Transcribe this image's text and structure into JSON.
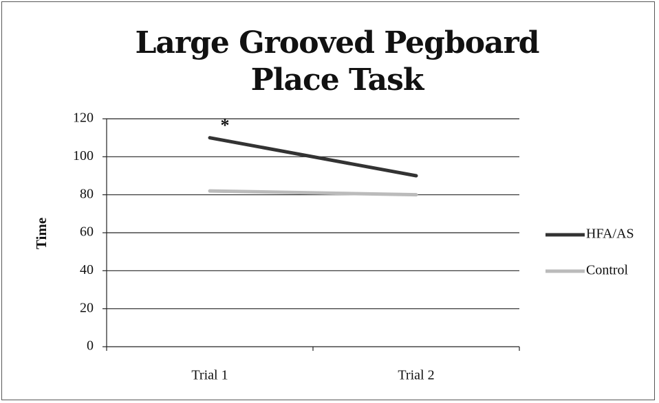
{
  "chart_data": {
    "type": "line",
    "title": "Large Grooved Pegboard Place Task",
    "y_label": "Time",
    "categories": [
      "Trial 1",
      "Trial 2"
    ],
    "series": [
      {
        "name": "HFA/AS",
        "color": "#333333",
        "values": [
          110,
          90
        ]
      },
      {
        "name": "Control",
        "color": "#bbbbbb",
        "values": [
          82,
          80
        ]
      }
    ],
    "annotations": [
      "*"
    ],
    "ylim": [
      0,
      120
    ],
    "yticks": [
      0,
      20,
      40,
      60,
      80,
      100,
      120
    ],
    "grid": true,
    "legend": "right"
  }
}
